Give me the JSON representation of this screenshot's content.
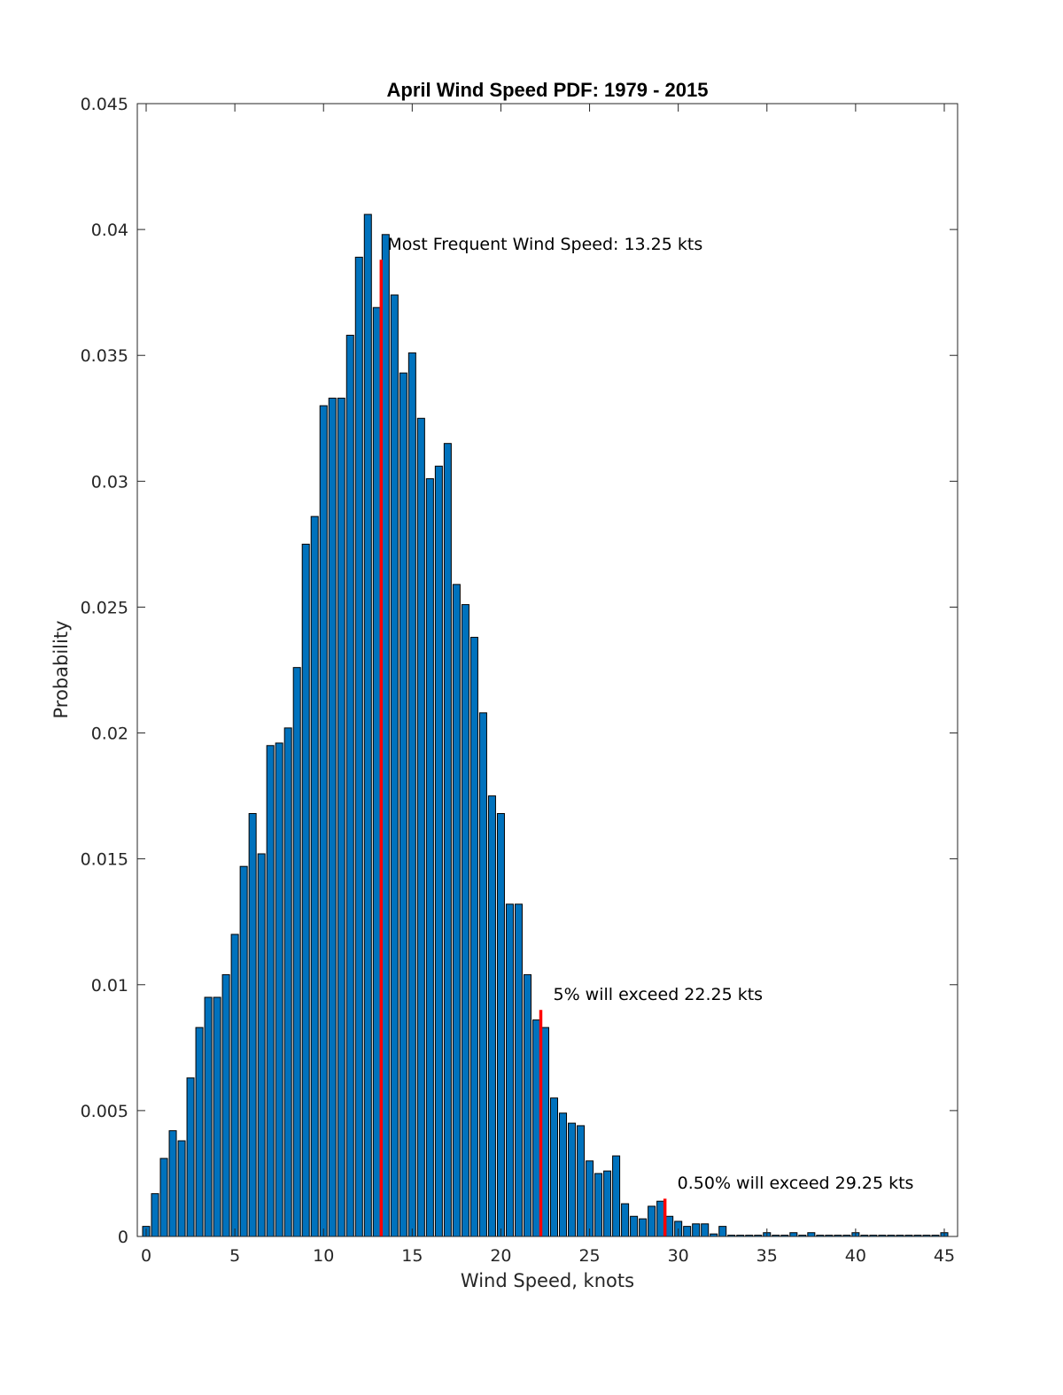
{
  "chart_data": {
    "type": "bar",
    "title": "April Wind Speed PDF: 1979 - 2015",
    "xlabel": "Wind Speed, knots",
    "ylabel": "Probability",
    "xlim": [
      -0.5,
      45.75
    ],
    "ylim": [
      0,
      0.045
    ],
    "xticks": [
      0,
      5,
      10,
      15,
      20,
      25,
      30,
      35,
      40,
      45
    ],
    "xtick_labels": [
      "0",
      "5",
      "10",
      "15",
      "20",
      "25",
      "30",
      "35",
      "40",
      "45"
    ],
    "yticks": [
      0,
      0.005,
      0.01,
      0.015,
      0.02,
      0.025,
      0.03,
      0.035,
      0.04,
      0.045
    ],
    "ytick_labels": [
      "0",
      "0.005",
      "0.01",
      "0.015",
      "0.02",
      "0.025",
      "0.03",
      "0.035",
      "0.04",
      "0.045"
    ],
    "bar_width": 0.4,
    "x": [
      0,
      0.5,
      1,
      1.5,
      2,
      2.5,
      3,
      3.5,
      4,
      4.5,
      5,
      5.5,
      6,
      6.5,
      7,
      7.5,
      8,
      8.5,
      9,
      9.5,
      10,
      10.5,
      11,
      11.5,
      12,
      12.5,
      13,
      13.5,
      14,
      14.5,
      15,
      15.5,
      16,
      16.5,
      17,
      17.5,
      18,
      18.5,
      19,
      19.5,
      20,
      20.5,
      21,
      21.5,
      22,
      22.5,
      23,
      23.5,
      24,
      24.5,
      25,
      25.5,
      26,
      26.5,
      27,
      27.5,
      28,
      28.5,
      29,
      29.5,
      30,
      30.5,
      31,
      31.5,
      32,
      32.5,
      33,
      33.5,
      34,
      34.5,
      35,
      35.5,
      36,
      36.5,
      37,
      37.5,
      38,
      38.5,
      39,
      39.5,
      40,
      40.5,
      41,
      41.5,
      42,
      42.5,
      43,
      43.5,
      44,
      44.5,
      45
    ],
    "values": [
      0.0004,
      0.0017,
      0.0031,
      0.0042,
      0.0038,
      0.0063,
      0.0083,
      0.0095,
      0.0095,
      0.0104,
      0.012,
      0.0147,
      0.0168,
      0.0152,
      0.0195,
      0.0196,
      0.0202,
      0.0226,
      0.0275,
      0.0286,
      0.033,
      0.0333,
      0.0333,
      0.0358,
      0.0389,
      0.0406,
      0.0369,
      0.0398,
      0.0374,
      0.0343,
      0.0351,
      0.0325,
      0.0301,
      0.0306,
      0.0315,
      0.0259,
      0.0251,
      0.0238,
      0.0208,
      0.0175,
      0.0168,
      0.0132,
      0.0132,
      0.0104,
      0.0086,
      0.0083,
      0.0055,
      0.0049,
      0.0045,
      0.0044,
      0.003,
      0.0025,
      0.0026,
      0.0032,
      0.0013,
      0.0008,
      0.0007,
      0.0012,
      0.0014,
      0.0008,
      0.0006,
      0.0004,
      0.0005,
      0.0005,
      0.0001,
      0.0004,
      5e-05,
      5e-05,
      5e-05,
      5e-05,
      0.00015,
      5e-05,
      5e-05,
      0.00015,
      5e-05,
      0.00015,
      5e-05,
      5e-05,
      5e-05,
      5e-05,
      0.00015,
      5e-05,
      5e-05,
      5e-05,
      5e-05,
      5e-05,
      5e-05,
      5e-05,
      5e-05,
      5e-05,
      0.00015
    ],
    "markers": [
      {
        "x": 13.25,
        "y": 0.0388,
        "label": "Most Frequent Wind Speed:  13.25 kts",
        "label_x": 13.6,
        "label_y": 0.0392
      },
      {
        "x": 22.25,
        "y": 0.009,
        "label": "5% will exceed 22.25 kts",
        "label_x": 22.95,
        "label_y": 0.0094
      },
      {
        "x": 29.25,
        "y": 0.0015,
        "label": "0.50% will exceed 29.25 kts",
        "label_x": 29.95,
        "label_y": 0.0019
      }
    ],
    "colors": {
      "bar": "#0072BD",
      "marker": "#ff0000"
    },
    "grid": false,
    "legend": "none"
  }
}
